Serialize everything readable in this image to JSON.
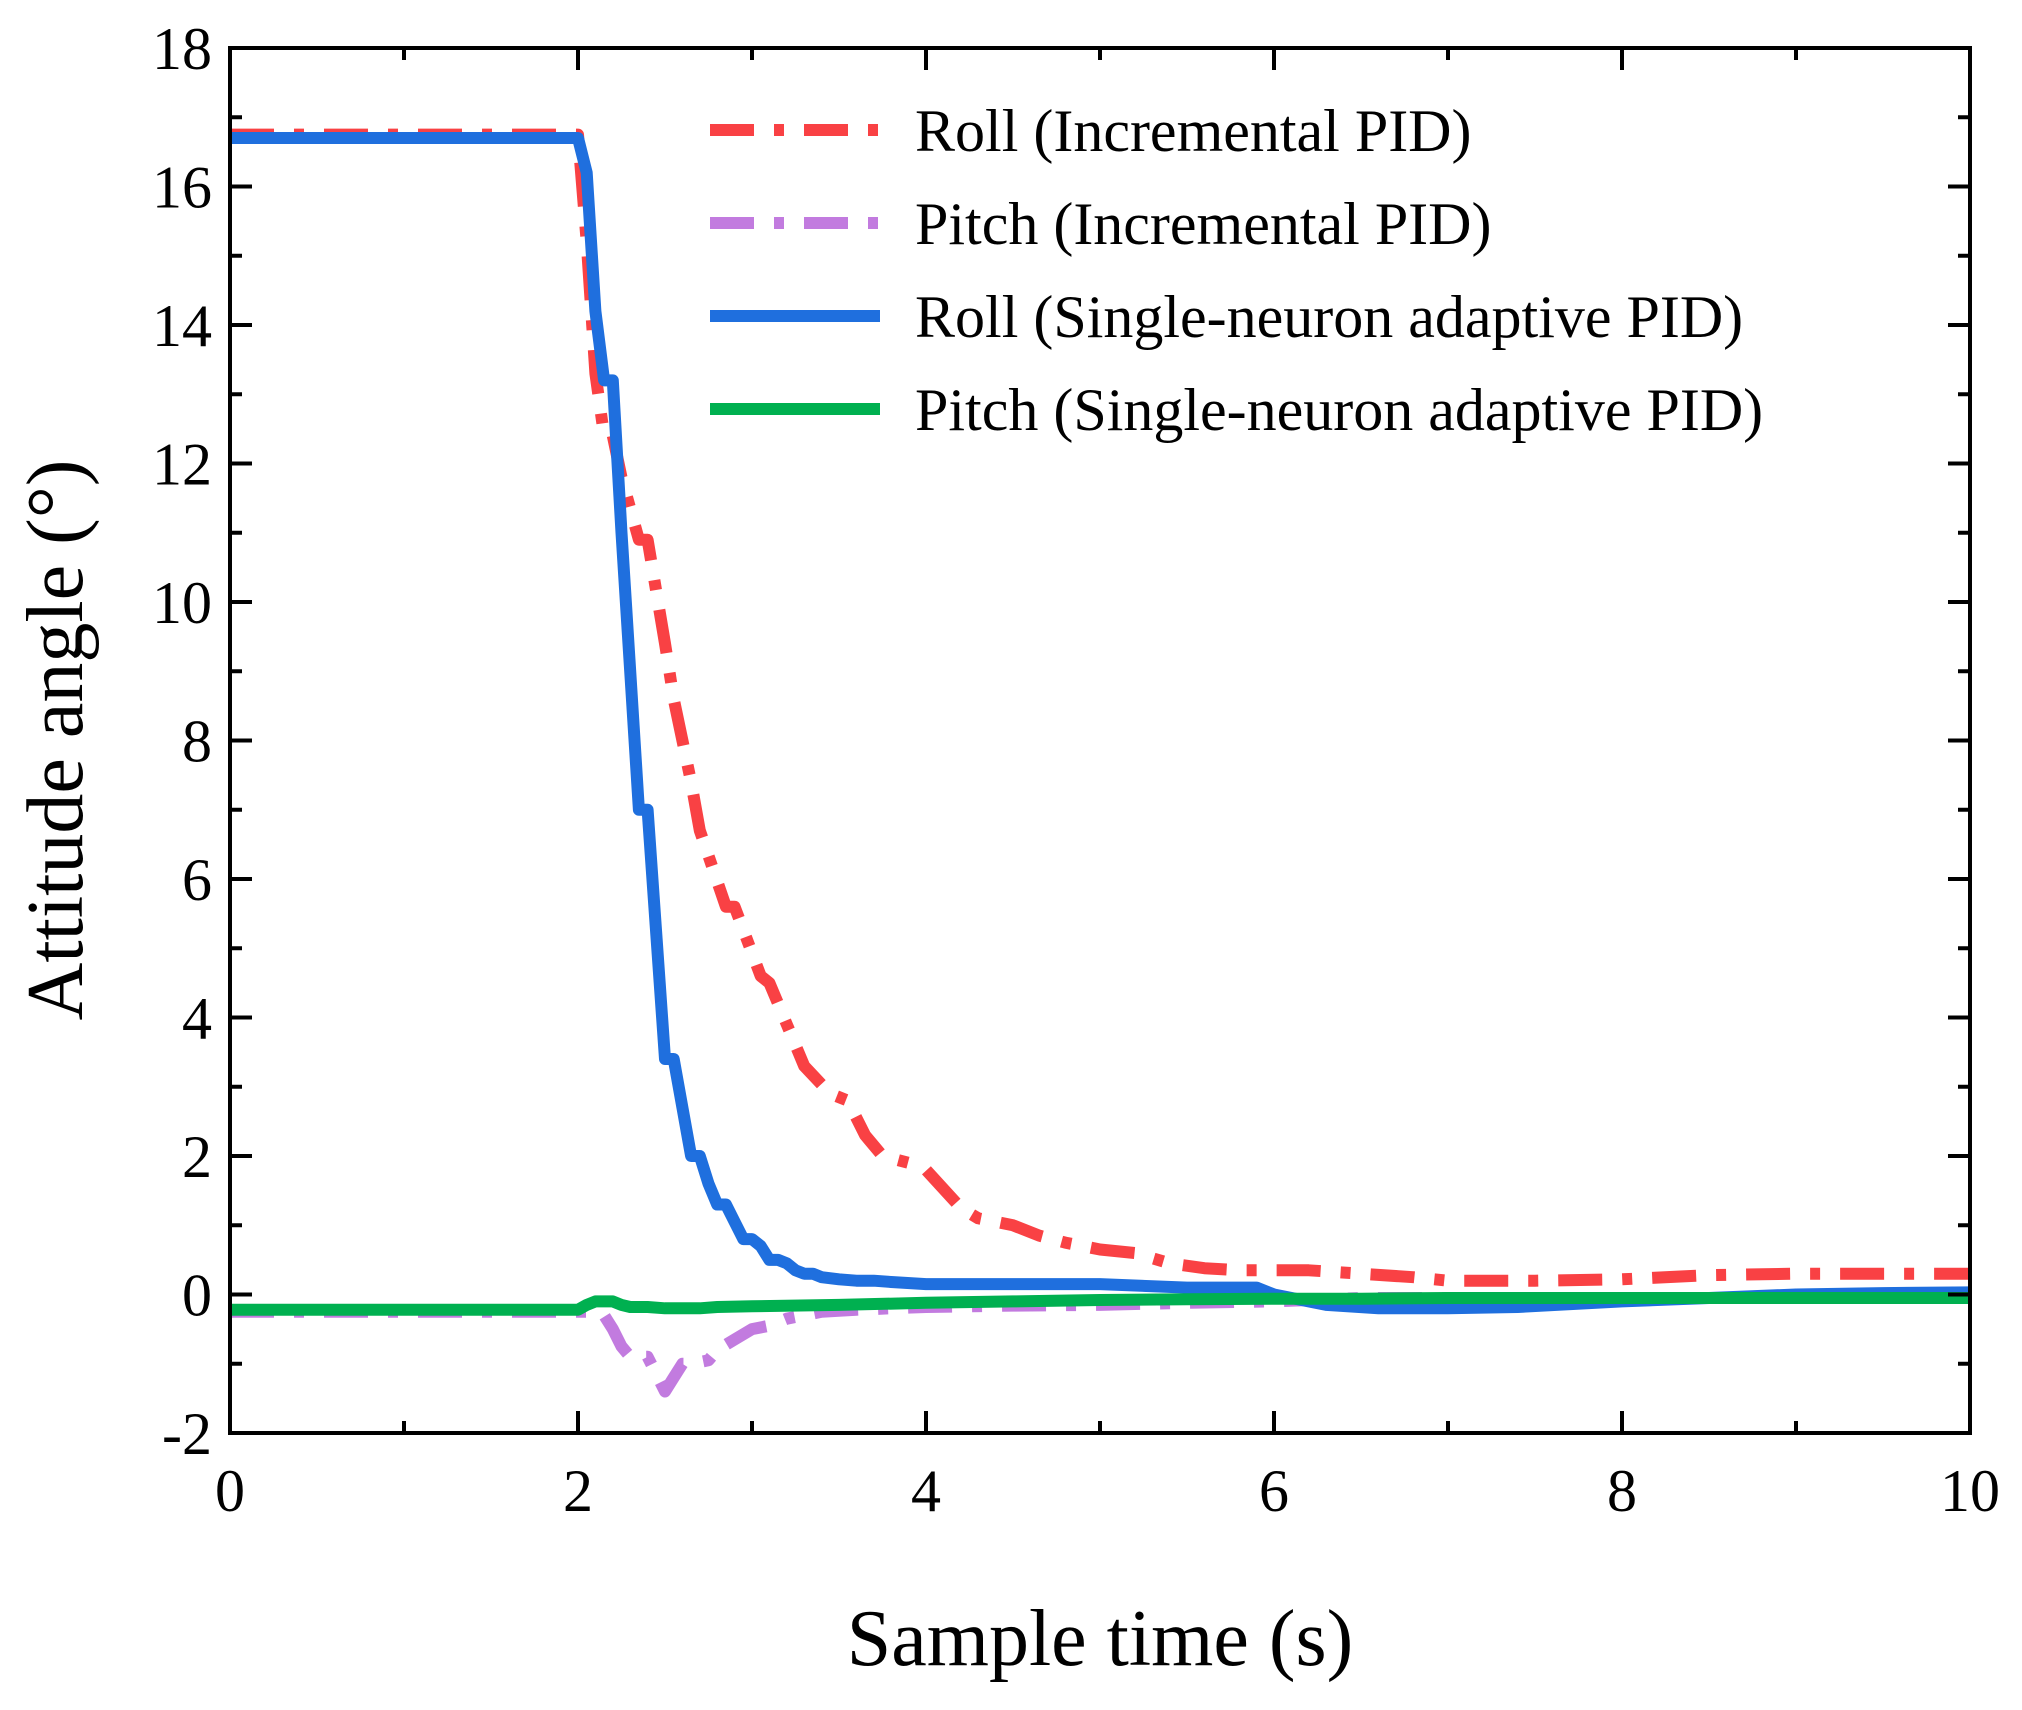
{
  "chart_data": {
    "type": "line",
    "title": "",
    "xlabel": "Sample time (s)",
    "ylabel": "Attitude angle (°)",
    "xlim": [
      0,
      10
    ],
    "ylim": [
      -2,
      18
    ],
    "xticks": [
      0,
      2,
      4,
      6,
      8,
      10
    ],
    "xtick_labels": [
      "0",
      "2",
      "4",
      "6",
      "8",
      "10"
    ],
    "yticks": [
      -2,
      0,
      2,
      4,
      6,
      8,
      10,
      12,
      14,
      16,
      18
    ],
    "ytick_labels": [
      "-2",
      "0",
      "2",
      "4",
      "6",
      "8",
      "10",
      "12",
      "14",
      "16",
      "18"
    ],
    "grid": false,
    "legend_position": "top-right",
    "series": [
      {
        "name": "Roll (Incremental PID)",
        "color": "#f94144",
        "line_style": "dash-dot",
        "x": [
          0,
          2.0,
          2.05,
          2.1,
          2.15,
          2.2,
          2.25,
          2.35,
          2.4,
          2.5,
          2.55,
          2.65,
          2.7,
          2.85,
          2.9,
          3.05,
          3.1,
          3.2,
          3.3,
          3.45,
          3.55,
          3.65,
          3.75,
          3.9,
          4.0,
          4.2,
          4.3,
          4.5,
          4.65,
          4.8,
          5.0,
          5.2,
          5.4,
          5.6,
          5.8,
          6.0,
          6.2,
          6.5,
          6.8,
          7.0,
          7.5,
          8.0,
          8.5,
          9.0,
          9.5,
          10.0
        ],
        "values": [
          16.75,
          16.75,
          15.2,
          13.3,
          12.4,
          12.4,
          11.8,
          10.9,
          10.9,
          9.4,
          8.6,
          7.4,
          6.7,
          5.6,
          5.6,
          4.6,
          4.5,
          3.9,
          3.3,
          2.9,
          2.8,
          2.3,
          2.0,
          1.9,
          1.8,
          1.25,
          1.1,
          1.0,
          0.85,
          0.75,
          0.65,
          0.6,
          0.45,
          0.38,
          0.35,
          0.35,
          0.35,
          0.3,
          0.25,
          0.2,
          0.2,
          0.22,
          0.28,
          0.3,
          0.3,
          0.3
        ]
      },
      {
        "name": "Pitch (Incremental PID)",
        "color": "#c27bdf",
        "line_style": "dash-dot",
        "x": [
          0,
          2.0,
          2.1,
          2.15,
          2.2,
          2.25,
          2.3,
          2.4,
          2.45,
          2.5,
          2.55,
          2.6,
          2.65,
          2.75,
          2.8,
          2.9,
          3.0,
          3.1,
          3.2,
          3.3,
          3.4,
          3.6,
          3.8,
          4.0,
          4.5,
          5.0,
          5.5,
          6.0,
          6.5,
          7.0,
          8.0,
          9.0,
          10.0
        ],
        "values": [
          -0.25,
          -0.25,
          -0.25,
          -0.3,
          -0.5,
          -0.75,
          -0.9,
          -0.9,
          -1.15,
          -1.4,
          -1.2,
          -1.0,
          -1.0,
          -0.95,
          -0.8,
          -0.65,
          -0.5,
          -0.45,
          -0.35,
          -0.3,
          -0.25,
          -0.22,
          -0.2,
          -0.18,
          -0.16,
          -0.15,
          -0.12,
          -0.1,
          -0.05,
          -0.05,
          -0.05,
          -0.05,
          -0.05
        ]
      },
      {
        "name": "Roll (Single-neuron adaptive PID)",
        "color": "#1f6fde",
        "line_style": "solid",
        "x": [
          0,
          2.0,
          2.05,
          2.1,
          2.15,
          2.2,
          2.25,
          2.3,
          2.35,
          2.4,
          2.45,
          2.5,
          2.55,
          2.6,
          2.65,
          2.7,
          2.75,
          2.8,
          2.85,
          2.9,
          2.95,
          3.0,
          3.05,
          3.1,
          3.15,
          3.2,
          3.25,
          3.3,
          3.35,
          3.4,
          3.5,
          3.6,
          3.7,
          3.8,
          4.0,
          4.3,
          4.6,
          5.0,
          5.5,
          5.9,
          6.0,
          6.3,
          6.6,
          7.0,
          7.4,
          8.0,
          8.5,
          9.0,
          9.5,
          10.0
        ],
        "values": [
          16.7,
          16.7,
          16.2,
          14.2,
          13.2,
          13.2,
          11.0,
          9.0,
          7.0,
          7.0,
          5.2,
          3.4,
          3.4,
          2.7,
          2.0,
          2.0,
          1.6,
          1.3,
          1.3,
          1.05,
          0.8,
          0.8,
          0.7,
          0.5,
          0.5,
          0.45,
          0.35,
          0.3,
          0.3,
          0.25,
          0.22,
          0.2,
          0.2,
          0.18,
          0.15,
          0.15,
          0.15,
          0.15,
          0.1,
          0.1,
          0.0,
          -0.15,
          -0.2,
          -0.2,
          -0.18,
          -0.1,
          -0.05,
          0.0,
          0.02,
          0.03
        ]
      },
      {
        "name": "Pitch (Single-neuron adaptive PID)",
        "color": "#00b050",
        "line_style": "solid",
        "x": [
          0,
          2.0,
          2.05,
          2.1,
          2.15,
          2.2,
          2.25,
          2.3,
          2.4,
          2.5,
          2.6,
          2.7,
          2.8,
          3.0,
          3.5,
          4.0,
          4.5,
          5.0,
          5.5,
          6.0,
          6.5,
          7.0,
          7.5,
          8.0,
          8.5,
          9.0,
          9.5,
          10.0
        ],
        "values": [
          -0.22,
          -0.22,
          -0.15,
          -0.1,
          -0.1,
          -0.1,
          -0.15,
          -0.18,
          -0.18,
          -0.2,
          -0.2,
          -0.2,
          -0.18,
          -0.17,
          -0.15,
          -0.12,
          -0.1,
          -0.08,
          -0.07,
          -0.06,
          -0.06,
          -0.05,
          -0.05,
          -0.05,
          -0.05,
          -0.05,
          -0.05,
          -0.05
        ]
      }
    ]
  }
}
